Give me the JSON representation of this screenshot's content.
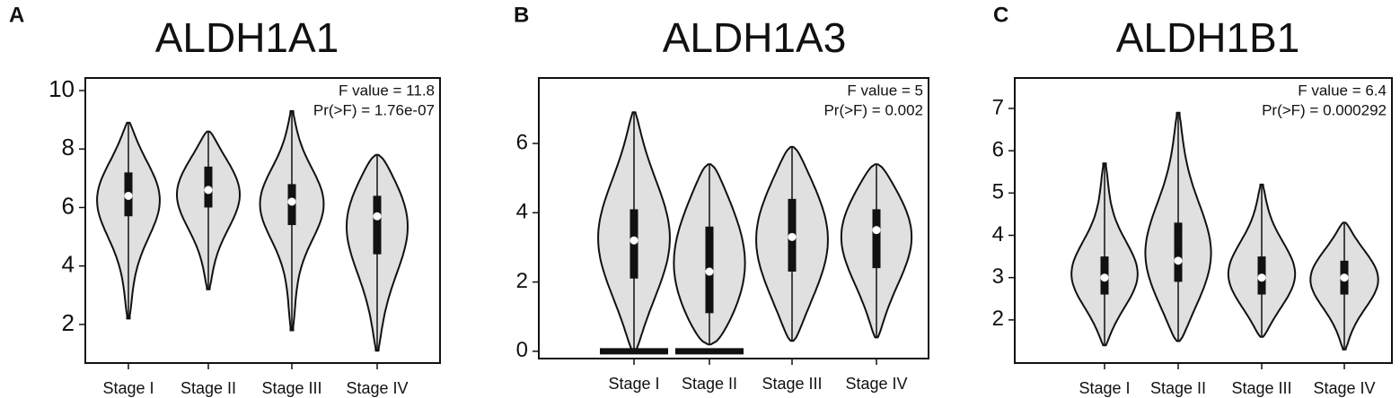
{
  "chart_data": [
    {
      "type": "violin",
      "panel_label": "A",
      "title": "ALDH1A1",
      "annotations": [
        "F value = 11.8",
        "Pr(>F) = 1.76e-07"
      ],
      "categories": [
        "Stage I",
        "Stage II",
        "Stage III",
        "Stage IV"
      ],
      "min": [
        2.2,
        3.2,
        1.8,
        1.1
      ],
      "q1": [
        5.7,
        6.0,
        5.4,
        4.4
      ],
      "median": [
        6.4,
        6.6,
        6.2,
        5.7
      ],
      "q3": [
        7.2,
        7.4,
        6.8,
        6.4
      ],
      "max": [
        8.9,
        8.6,
        9.3,
        7.8
      ],
      "color": "#e0e0e0",
      "ylim": [
        0.68,
        10.43
      ],
      "yticks": [
        2,
        4,
        6,
        8,
        10
      ]
    },
    {
      "type": "violin",
      "panel_label": "B",
      "title": "ALDH1A3",
      "annotations": [
        "F value = 5",
        "Pr(>F) = 0.002"
      ],
      "categories": [
        "Stage I",
        "Stage II",
        "Stage III",
        "Stage IV"
      ],
      "min": [
        0,
        0.2,
        0.3,
        0.4
      ],
      "q1": [
        2.1,
        1.1,
        2.3,
        2.4
      ],
      "median": [
        3.2,
        2.3,
        3.3,
        3.5
      ],
      "q3": [
        4.1,
        3.6,
        4.4,
        4.1
      ],
      "max": [
        6.9,
        5.4,
        5.9,
        5.4
      ],
      "points": [
        0,
        0,
        null,
        null
      ],
      "color": "#e0e0e0",
      "ylim": [
        -0.21,
        7.89
      ],
      "yticks": [
        0,
        2,
        4,
        6
      ]
    },
    {
      "type": "violin",
      "panel_label": "C",
      "title": "ALDH1B1",
      "annotations": [
        "F value = 6.4",
        "Pr(>F) = 0.000292"
      ],
      "categories": [
        "Stage I",
        "Stage II",
        "Stage III",
        "Stage IV"
      ],
      "min": [
        1.4,
        1.5,
        1.6,
        1.3
      ],
      "q1": [
        2.6,
        2.9,
        2.6,
        2.6
      ],
      "median": [
        3.0,
        3.4,
        3.0,
        3.0
      ],
      "q3": [
        3.5,
        4.3,
        3.5,
        3.4
      ],
      "max": [
        5.7,
        6.9,
        5.2,
        4.3
      ],
      "color": "#e0e0e0",
      "ylim": [
        0.98,
        7.72
      ],
      "yticks": [
        2,
        3,
        4,
        5,
        6,
        7
      ]
    }
  ]
}
